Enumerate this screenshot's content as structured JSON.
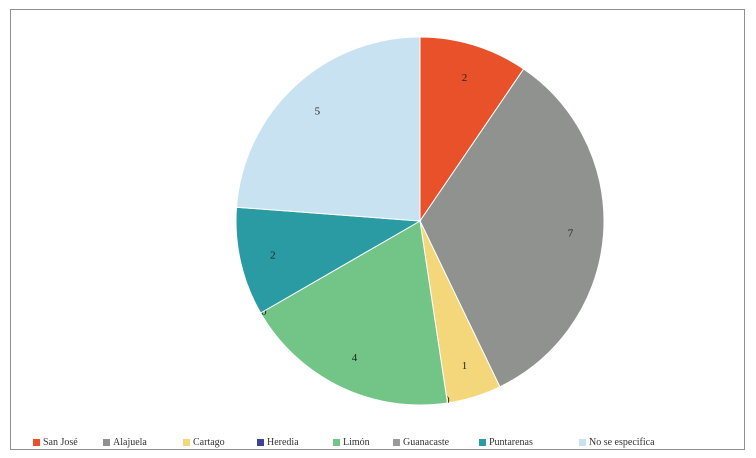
{
  "chart_data": {
    "type": "pie",
    "title": "",
    "categories": [
      "San José",
      "Alajuela",
      "Cartago",
      "Heredia",
      "Limón",
      "Guanacaste",
      "Puntarenas",
      "No se especifica"
    ],
    "values": [
      2,
      7,
      1,
      0,
      4,
      0,
      2,
      5
    ],
    "colors": [
      "#e8512a",
      "#8f928f",
      "#f3d77a",
      "#3f3f9c",
      "#72c487",
      "#9a9a9a",
      "#2a9aa3",
      "#c9e2f2"
    ],
    "legend_position": "bottom",
    "start_angle_deg": 0,
    "direction": "clockwise"
  }
}
